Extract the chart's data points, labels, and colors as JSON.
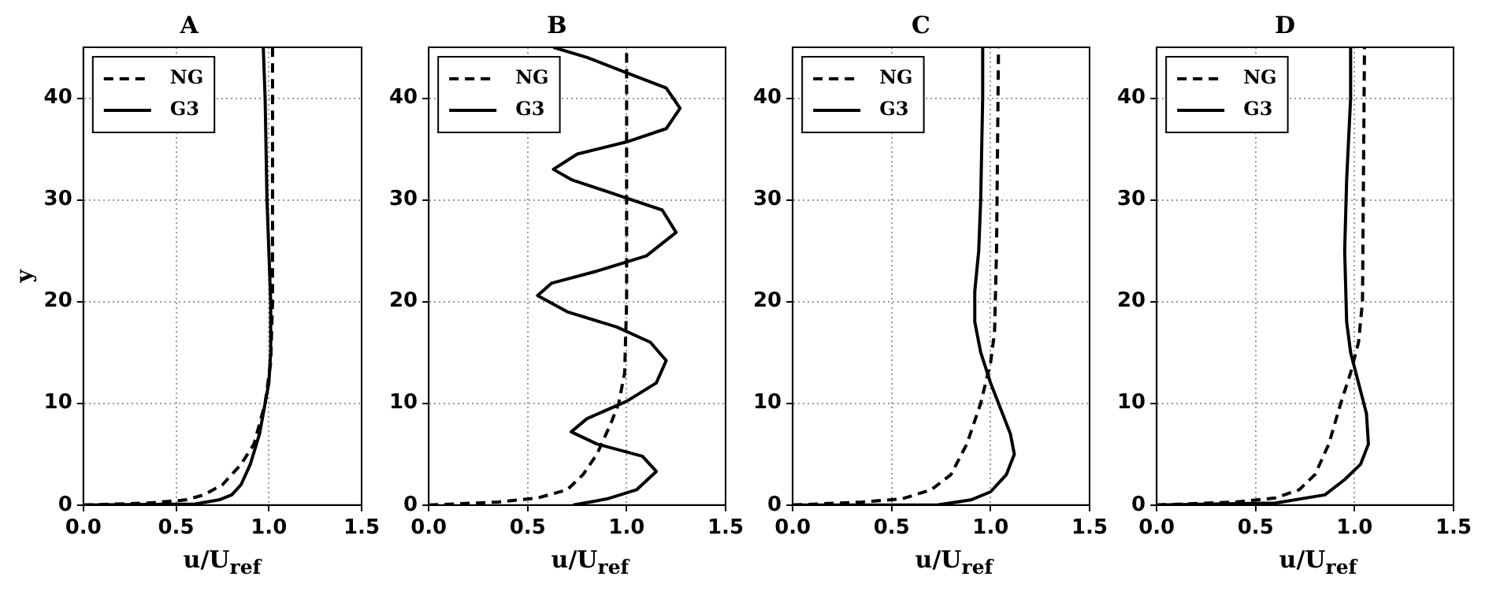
{
  "chart_data": [
    {
      "type": "line",
      "title": "A",
      "xlabel": "u/U$_{ref}$",
      "ylabel": "y",
      "xlim": [
        0,
        1.5
      ],
      "ylim": [
        0,
        45
      ],
      "xticks": [
        {
          "value": 0,
          "label": "0.0"
        },
        {
          "value": 0.5,
          "label": "0.5"
        },
        {
          "value": 1,
          "label": "1.0"
        },
        {
          "value": 1.5,
          "label": "1.5"
        }
      ],
      "yticks": [
        0,
        10,
        20,
        30,
        40
      ],
      "grid": true,
      "legend": "top left",
      "series": [
        {
          "name": "NG",
          "color": "#000000",
          "line_style": "dashed",
          "x": [
            0,
            0.35,
            0.55,
            0.65,
            0.75,
            0.85,
            0.92,
            0.98,
            1.01,
            1.02,
            1.02,
            1.02
          ],
          "values": [
            0,
            0.2,
            0.5,
            1,
            2,
            4,
            6,
            10,
            14,
            20,
            30,
            45
          ]
        },
        {
          "name": "G3",
          "color": "#000000",
          "line_style": "solid",
          "x": [
            0,
            0.6,
            0.73,
            0.8,
            0.85,
            0.9,
            0.95,
            0.98,
            1.0,
            1.01,
            1.01,
            0.99,
            0.98,
            0.97
          ],
          "values": [
            0,
            0.1,
            0.5,
            1,
            2,
            4,
            7,
            10,
            12,
            15,
            20,
            30,
            40,
            45
          ]
        }
      ]
    },
    {
      "type": "line",
      "title": "B",
      "xlabel": "u/U$_{ref}$",
      "xlim": [
        0,
        1.5
      ],
      "ylim": [
        0,
        45
      ],
      "xticks": [
        {
          "value": 0,
          "label": "0.0"
        },
        {
          "value": 0.5,
          "label": "0.5"
        },
        {
          "value": 1,
          "label": "1.0"
        },
        {
          "value": 1.5,
          "label": "1.5"
        }
      ],
      "yticks": [
        0,
        10,
        20,
        30,
        40
      ],
      "grid": true,
      "legend": "top left",
      "series": [
        {
          "name": "NG",
          "color": "#000000",
          "line_style": "dashed",
          "x": [
            0,
            0.35,
            0.55,
            0.7,
            0.78,
            0.85,
            0.92,
            0.96,
            0.99,
            1.0,
            1.0,
            1.0
          ],
          "values": [
            0,
            0.3,
            0.7,
            1.5,
            3,
            5,
            8,
            10,
            13,
            20,
            30,
            45
          ]
        },
        {
          "name": "G3",
          "color": "#000000",
          "line_style": "solid",
          "x": [
            0.73,
            0.9,
            1.05,
            1.15,
            1.08,
            0.85,
            0.72,
            0.8,
            1.0,
            1.15,
            1.2,
            1.12,
            0.95,
            0.7,
            0.55,
            0.62,
            0.85,
            1.1,
            1.25,
            1.18,
            0.95,
            0.72,
            0.63,
            0.75,
            1.0,
            1.2,
            1.27,
            1.2,
            1.0,
            0.8,
            0.63
          ],
          "values": [
            0,
            0.6,
            1.5,
            3.3,
            4.8,
            6,
            7.2,
            8.5,
            10.2,
            12,
            14.2,
            16,
            17.5,
            19,
            20.6,
            21.8,
            23,
            24.5,
            26.8,
            29,
            30.5,
            32,
            33,
            34.5,
            35.7,
            37,
            39,
            41,
            42.5,
            44,
            45
          ]
        }
      ]
    },
    {
      "type": "line",
      "title": "C",
      "xlabel": "u/U$_{ref}$",
      "xlim": [
        0,
        1.5
      ],
      "ylim": [
        0,
        45
      ],
      "xticks": [
        {
          "value": 0,
          "label": "0.0"
        },
        {
          "value": 0.5,
          "label": "0.5"
        },
        {
          "value": 1,
          "label": "1.0"
        },
        {
          "value": 1.5,
          "label": "1.5"
        }
      ],
      "yticks": [
        0,
        10,
        20,
        30,
        40
      ],
      "grid": true,
      "legend": "top left",
      "series": [
        {
          "name": "NG",
          "color": "#000000",
          "line_style": "dashed",
          "x": [
            0,
            0.35,
            0.55,
            0.7,
            0.8,
            0.88,
            0.95,
            1.0,
            1.02,
            1.03,
            1.04
          ],
          "values": [
            0,
            0.3,
            0.6,
            1.5,
            3,
            6,
            10,
            14,
            17,
            25,
            45
          ]
        },
        {
          "name": "G3",
          "color": "#000000",
          "line_style": "solid",
          "x": [
            0,
            0.73,
            0.9,
            1.0,
            1.08,
            1.12,
            1.1,
            1.05,
            1.0,
            0.95,
            0.92,
            0.92,
            0.94,
            0.95,
            0.96,
            0.96
          ],
          "values": [
            0,
            0,
            0.5,
            1.3,
            3,
            5,
            7,
            9.5,
            12,
            15,
            18,
            21,
            25,
            30,
            40,
            45
          ]
        }
      ]
    },
    {
      "type": "line",
      "title": "D",
      "xlabel": "u/U$_{ref}$",
      "xlim": [
        0,
        1.5
      ],
      "ylim": [
        0,
        45
      ],
      "xticks": [
        {
          "value": 0,
          "label": "0.0"
        },
        {
          "value": 0.5,
          "label": "0.5"
        },
        {
          "value": 1,
          "label": "1.0"
        },
        {
          "value": 1.5,
          "label": "1.5"
        }
      ],
      "yticks": [
        0,
        10,
        20,
        30,
        40
      ],
      "grid": true,
      "legend": "top left",
      "series": [
        {
          "name": "NG",
          "color": "#000000",
          "line_style": "dashed",
          "x": [
            0,
            0.4,
            0.6,
            0.72,
            0.8,
            0.87,
            0.93,
            0.98,
            1.02,
            1.04,
            1.05
          ],
          "values": [
            0,
            0.3,
            0.7,
            1.5,
            3,
            6,
            10,
            13,
            16,
            20,
            45
          ]
        },
        {
          "name": "G3",
          "color": "#000000",
          "line_style": "solid",
          "x": [
            0,
            0.6,
            0.85,
            0.95,
            1.03,
            1.07,
            1.06,
            1.02,
            0.98,
            0.96,
            0.95,
            0.96,
            0.98,
            0.98
          ],
          "values": [
            0,
            0.2,
            1,
            2.5,
            4,
            6,
            9,
            12,
            15,
            18,
            25,
            32,
            40,
            45
          ]
        }
      ]
    }
  ]
}
